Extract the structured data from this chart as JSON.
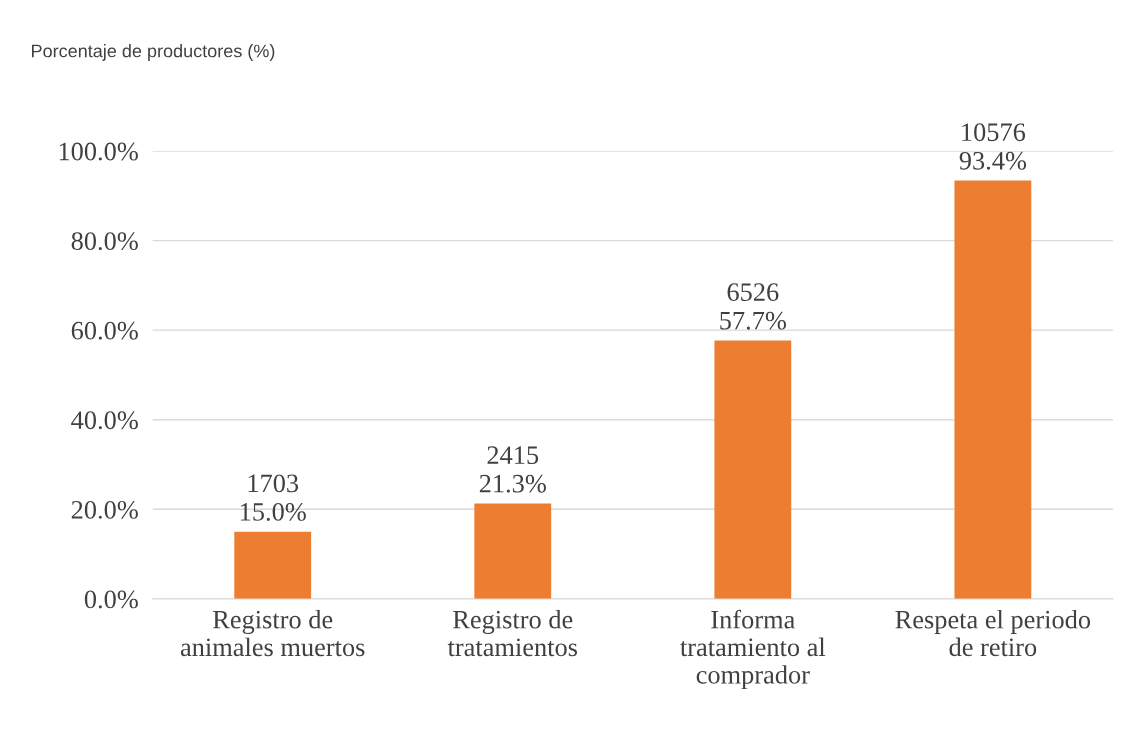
{
  "chart_data": {
    "type": "bar",
    "ylabel": "Porcentaje de productores (%)",
    "categories": [
      "Registro de\nanimales muertos",
      "Registro de\ntratamientos",
      "Informa\ntratamiento al\ncomprador",
      "Respeta el periodo\nde retiro"
    ],
    "values": [
      15.0,
      21.3,
      57.7,
      93.4
    ],
    "value_labels": [
      "1703\n15.0%",
      "2415\n21.3%",
      "6526\n57.7%",
      "10576\n93.4%"
    ],
    "color": "#ed7d31",
    "ylim": [
      0,
      100
    ],
    "yticks": [
      {
        "value": 0,
        "label": "0.0%"
      },
      {
        "value": 20,
        "label": "20.0%"
      },
      {
        "value": 40,
        "label": "40.0%"
      },
      {
        "value": 60,
        "label": "60.0%"
      },
      {
        "value": 80,
        "label": "80.0%"
      },
      {
        "value": 100,
        "label": "100.0%"
      }
    ],
    "grid": "y",
    "legend": false
  }
}
